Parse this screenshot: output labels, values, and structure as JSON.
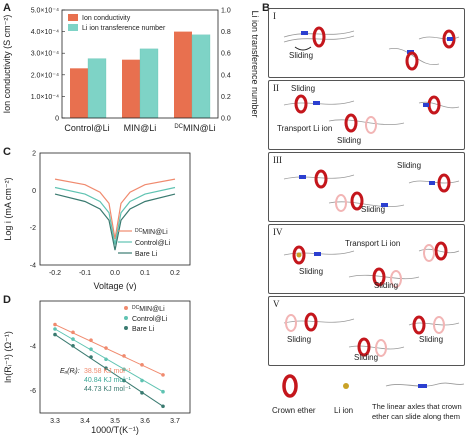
{
  "panels": {
    "A": "A",
    "B": "B",
    "C": "C",
    "D": "D"
  },
  "panelA": {
    "chart_data": {
      "type": "bar",
      "categories": [
        "Control@Li",
        "MIN@Li",
        "DCMIN@Li"
      ],
      "series": [
        {
          "name": "Ion conductivity",
          "axis": "left",
          "values": [
            0.00023,
            0.00027,
            0.0004
          ],
          "color": "#e8704f"
        },
        {
          "name": "Li ion transference number",
          "axis": "right",
          "values": [
            0.55,
            0.64,
            0.77
          ],
          "color": "#7ed3c6"
        }
      ],
      "ylabel": "Ion conductivity (S cm⁻²)",
      "ylabel_right": "Li ion transference number",
      "ylim": [
        0,
        0.0005
      ],
      "ylim_right": [
        0,
        1.0
      ],
      "yticks": [
        "0",
        "1.0×10⁻⁴",
        "2.0×10⁻⁴",
        "3.0×10⁻⁴",
        "4.0×10⁻⁴",
        "5.0×10⁻⁴"
      ],
      "yticks_right": [
        "0.0",
        "0.2",
        "0.4",
        "0.6",
        "0.8",
        "1.0"
      ]
    },
    "xtick_labels": {
      "c0": "Control@Li",
      "c1": "MIN@Li",
      "c2_sup": "DC",
      "c2": "MIN@Li"
    }
  },
  "panelC": {
    "chart_data": {
      "type": "line",
      "xlabel": "Voltage (v)",
      "ylabel": "Log i (mA cm⁻²)",
      "xlim": [
        -0.25,
        0.25
      ],
      "ylim": [
        -4,
        2
      ],
      "xticks": [
        "-0.2",
        "-0.1",
        "0.0",
        "0.1",
        "0.2"
      ],
      "yticks": [
        "2",
        "0",
        "-2",
        "-4"
      ],
      "series": [
        {
          "name": "DCMIN@Li",
          "color": "#f08a6e",
          "x": [
            -0.2,
            -0.1,
            -0.05,
            -0.02,
            0,
            0.02,
            0.05,
            0.1,
            0.2
          ],
          "y": [
            0.6,
            0.3,
            -0.1,
            -0.7,
            -2.6,
            -0.7,
            -0.1,
            0.3,
            0.6
          ]
        },
        {
          "name": "Control@Li",
          "color": "#5fc3b2",
          "x": [
            -0.2,
            -0.1,
            -0.05,
            -0.02,
            0,
            0.02,
            0.05,
            0.1,
            0.2
          ],
          "y": [
            0.15,
            -0.2,
            -0.6,
            -1.2,
            -2.9,
            -1.2,
            -0.6,
            -0.2,
            0.15
          ]
        },
        {
          "name": "Bare Li",
          "color": "#3a7a70",
          "x": [
            -0.2,
            -0.1,
            -0.05,
            -0.02,
            0,
            0.02,
            0.05,
            0.1,
            0.2
          ],
          "y": [
            -0.2,
            -0.6,
            -1.0,
            -1.6,
            -3.2,
            -1.6,
            -1.0,
            -0.6,
            -0.2
          ]
        }
      ]
    },
    "legend": {
      "l0_sup": "DC",
      "l0": "MIN@Li",
      "l1": "Control@Li",
      "l2": "Bare Li"
    }
  },
  "panelD": {
    "chart_data": {
      "type": "scatter",
      "xlabel": "1000/T(K⁻¹)",
      "ylabel": "ln(Rᵢ⁻¹) (Ω⁻¹)",
      "xlim": [
        3.25,
        3.75
      ],
      "ylim": [
        -7,
        -2
      ],
      "xticks": [
        "3.3",
        "3.4",
        "3.5",
        "3.6",
        "3.7"
      ],
      "yticks": [
        "-4",
        "-6"
      ],
      "series": [
        {
          "name": "DCMIN@Li",
          "color": "#f08a6e",
          "x": [
            3.3,
            3.36,
            3.42,
            3.47,
            3.53,
            3.59,
            3.66
          ],
          "y": [
            -3.05,
            -3.4,
            -3.75,
            -4.1,
            -4.45,
            -4.85,
            -5.3
          ]
        },
        {
          "name": "Control@Li",
          "color": "#5fc3b2",
          "x": [
            3.3,
            3.36,
            3.42,
            3.47,
            3.53,
            3.59,
            3.66
          ],
          "y": [
            -3.25,
            -3.7,
            -4.15,
            -4.6,
            -5.05,
            -5.55,
            -6.05
          ]
        },
        {
          "name": "Bare Li",
          "color": "#3a7a70",
          "x": [
            3.3,
            3.36,
            3.42,
            3.47,
            3.53,
            3.59,
            3.66
          ],
          "y": [
            -3.5,
            -4.0,
            -4.5,
            -5.0,
            -5.55,
            -6.1,
            -6.7
          ]
        }
      ]
    },
    "legend": {
      "l0_sup": "DC",
      "l0": "MIN@Li",
      "l1": "Control@Li",
      "l2": "Bare Li"
    },
    "ea_label": "Eₐ(Rᵢ):",
    "ea_values": [
      "38.58 KJ mol⁻¹",
      "40.84 KJ mol⁻¹",
      "44.73 KJ mol⁻¹"
    ]
  },
  "panelB": {
    "roman": [
      "I",
      "II",
      "III",
      "IV",
      "V"
    ],
    "labels": {
      "I_sliding": "Sliding",
      "II_sliding1": "Sliding",
      "II_transport": "Transport Li ion",
      "II_sliding2": "Sliding",
      "III_sliding1": "Sliding",
      "III_sliding2": "Sliding",
      "IV_sliding1": "Sliding",
      "IV_transport": "Transport Li ion",
      "IV_sliding2": "Sliding",
      "V_sliding1": "Sliding",
      "V_sliding2": "Sliding",
      "V_sliding3": "Sliding"
    },
    "legend": {
      "crown": "Crown ether",
      "liion": "Li ion",
      "axle": "The linear axles that crown ether can slide along them"
    }
  },
  "colors": {
    "orange": "#e8704f",
    "teal": "#7ed3c6",
    "dark_teal": "#3a7a70",
    "crown_red": "#c4161c",
    "blue": "#2b3fd0"
  }
}
